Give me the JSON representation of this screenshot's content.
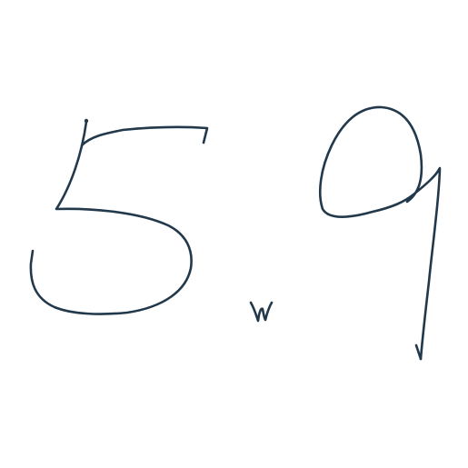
{
  "handwriting": {
    "text": "5.9",
    "ink_color": "#22384b",
    "background_color": "#ffffff",
    "glyphs": [
      {
        "char": "5",
        "name": "digit-five-stroke"
      },
      {
        "char": ".",
        "name": "decimal-point-stroke"
      },
      {
        "char": "9",
        "name": "digit-nine-stroke"
      }
    ]
  }
}
